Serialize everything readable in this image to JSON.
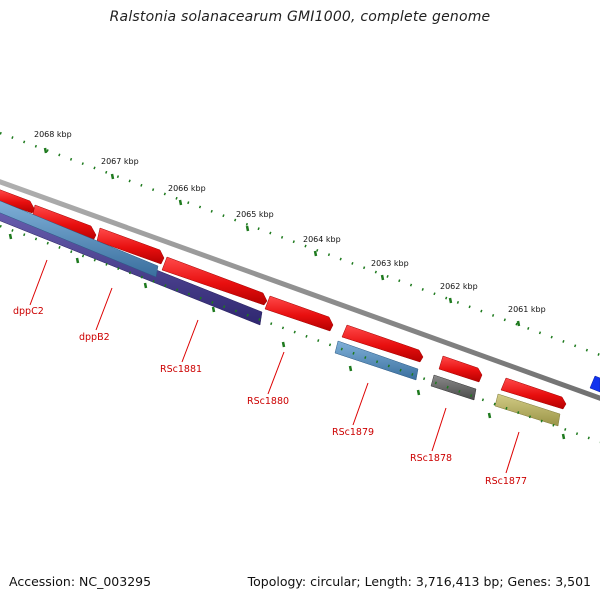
{
  "title": "Ralstonia solanacearum GMI1000, complete genome",
  "accession": "Accession: NC_003295",
  "summary": "Topology: circular; Length: 3,716,413 bp; Genes: 3,501",
  "ruler": [
    "2068 kbp",
    "2067 kbp",
    "2066 kbp",
    "2065 kbp",
    "2064 kbp",
    "2063 kbp",
    "2062 kbp",
    "2061 kbp"
  ],
  "gene_labels": [
    "dppC2",
    "dppB2",
    "RSc1881",
    "RSc1880",
    "RSc1879",
    "RSc1878",
    "RSc1877"
  ],
  "colors": {
    "backbone": "#8a8a8a",
    "forward_gene": "#ee1111",
    "dpp_blue": "#4a86b8",
    "dpp_purple": "#4b3f8c",
    "gray_gene": "#666666",
    "olive_gene": "#b8b060",
    "blue_gene": "#1133ee",
    "ticks": "#1e7a1e",
    "label": "#cc0000"
  }
}
